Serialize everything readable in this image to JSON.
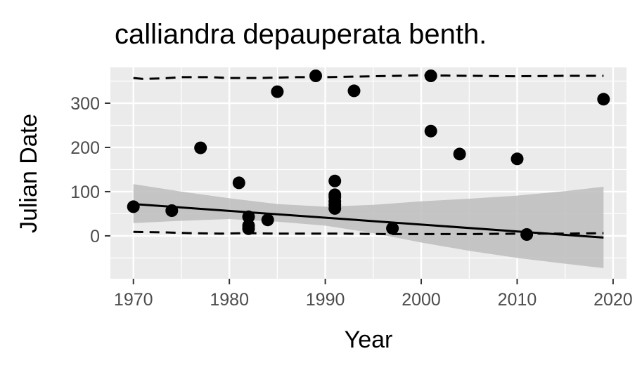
{
  "chart_data": {
    "type": "scatter",
    "title": "calliandra depauperata benth.",
    "xlabel": "Year",
    "ylabel": "Julian Date",
    "xlim": [
      1967.6,
      2021.4
    ],
    "ylim": [
      -97,
      381
    ],
    "x_ticks": [
      1970,
      1980,
      1990,
      2000,
      2010,
      2020
    ],
    "y_ticks": [
      0,
      100,
      200,
      300
    ],
    "x_tick_labels": [
      "1970",
      "1980",
      "1990",
      "2000",
      "2010",
      "2020"
    ],
    "y_tick_labels": [
      "0",
      "100",
      "200",
      "300"
    ],
    "grid": true,
    "legend": "none",
    "colors": {
      "panel": "#ebebeb",
      "grid": "#ffffff",
      "points": "#000000",
      "ribbon": "#bdbdbd",
      "fit_line": "#000000",
      "quantile_lines": "#000000"
    },
    "points": [
      {
        "x": 1970,
        "y": 66
      },
      {
        "x": 1974,
        "y": 57
      },
      {
        "x": 1977,
        "y": 199
      },
      {
        "x": 1981,
        "y": 120
      },
      {
        "x": 1982,
        "y": 43
      },
      {
        "x": 1982,
        "y": 23
      },
      {
        "x": 1982,
        "y": 16
      },
      {
        "x": 1984,
        "y": 36
      },
      {
        "x": 1985,
        "y": 326
      },
      {
        "x": 1989,
        "y": 362
      },
      {
        "x": 1991,
        "y": 124
      },
      {
        "x": 1991,
        "y": 93
      },
      {
        "x": 1991,
        "y": 88
      },
      {
        "x": 1991,
        "y": 78
      },
      {
        "x": 1991,
        "y": 70
      },
      {
        "x": 1991,
        "y": 62
      },
      {
        "x": 1993,
        "y": 328
      },
      {
        "x": 1997,
        "y": 17
      },
      {
        "x": 2001,
        "y": 362
      },
      {
        "x": 2001,
        "y": 237
      },
      {
        "x": 2004,
        "y": 185
      },
      {
        "x": 2010,
        "y": 174
      },
      {
        "x": 2011,
        "y": 3
      },
      {
        "x": 2019,
        "y": 309
      }
    ],
    "trend_line": {
      "x": [
        1970,
        2019
      ],
      "y": [
        72,
        -4
      ]
    },
    "confidence_band": {
      "x": [
        1970,
        1975,
        1980,
        1985,
        1990,
        1995,
        2000,
        2005,
        2010,
        2015,
        2019
      ],
      "upper": [
        117,
        100,
        85,
        72,
        66,
        70,
        78,
        84,
        91,
        101,
        111
      ],
      "lower": [
        29,
        34,
        38,
        32,
        23,
        6,
        -15,
        -34,
        -50,
        -63,
        -73
      ]
    },
    "upper_quantile": {
      "x": [
        1970,
        1971,
        1973,
        1975,
        1978,
        1980,
        1983,
        1987,
        1990,
        1995,
        2000,
        2005,
        2010,
        2015,
        2019
      ],
      "y": [
        357,
        355,
        356,
        359,
        359,
        357,
        357,
        359,
        359,
        361,
        363,
        362,
        361,
        362,
        362
      ]
    },
    "lower_quantile": {
      "x": [
        1970,
        1973,
        1976,
        1979,
        1982,
        1985,
        1988,
        1992,
        1996,
        2000,
        2005,
        2010,
        2015,
        2019
      ],
      "y": [
        9,
        8,
        6,
        5,
        6,
        5,
        5,
        5,
        4,
        4,
        4,
        5,
        5,
        6
      ]
    }
  }
}
